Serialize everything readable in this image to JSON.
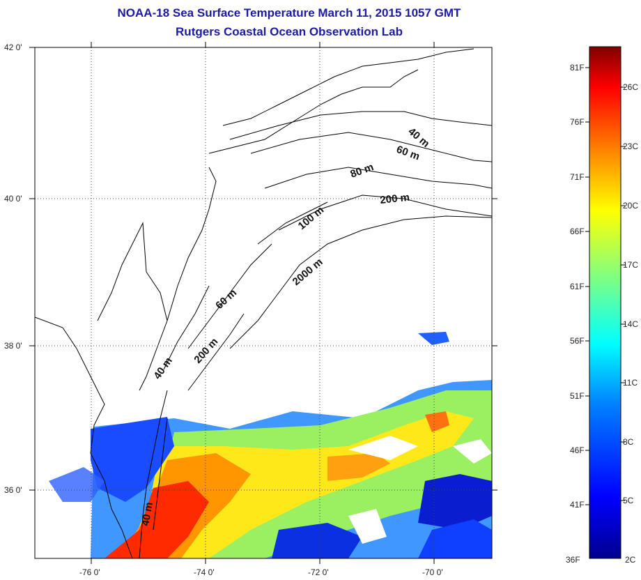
{
  "title": {
    "line1": "NOAA-18 Sea Surface Temperature March 11, 2015 1057 GMT",
    "line2": "Rutgers Coastal Ocean Observation Lab"
  },
  "map": {
    "lon_ticks": [
      "-76 0'",
      "-74 0'",
      "-72 0'",
      "-70 0'"
    ],
    "lat_ticks": [
      "42 0'",
      "40 0'",
      "38 0'",
      "36 0'"
    ],
    "grid_style": "dotted",
    "contours": [
      {
        "label": "40 m"
      },
      {
        "label": "60 m"
      },
      {
        "label": "80 m"
      },
      {
        "label": "100 m"
      },
      {
        "label": "200 m"
      },
      {
        "label": "2000 m"
      },
      {
        "label": "60 m"
      },
      {
        "label": "40 m"
      },
      {
        "label": "200 m"
      },
      {
        "label": "40 m"
      }
    ]
  },
  "colorbar": {
    "fahrenheit": [
      "81F",
      "76F",
      "71F",
      "66F",
      "61F",
      "56F",
      "51F",
      "46F",
      "41F",
      "36F"
    ],
    "celsius": [
      "26C",
      "23C",
      "20C",
      "17C",
      "14C",
      "11C",
      "8C",
      "5C",
      "2C"
    ],
    "colors": [
      "#00008f",
      "#0000ff",
      "#0080ff",
      "#00ffff",
      "#80ff80",
      "#ffff00",
      "#ff8000",
      "#ff0000",
      "#800000"
    ]
  }
}
